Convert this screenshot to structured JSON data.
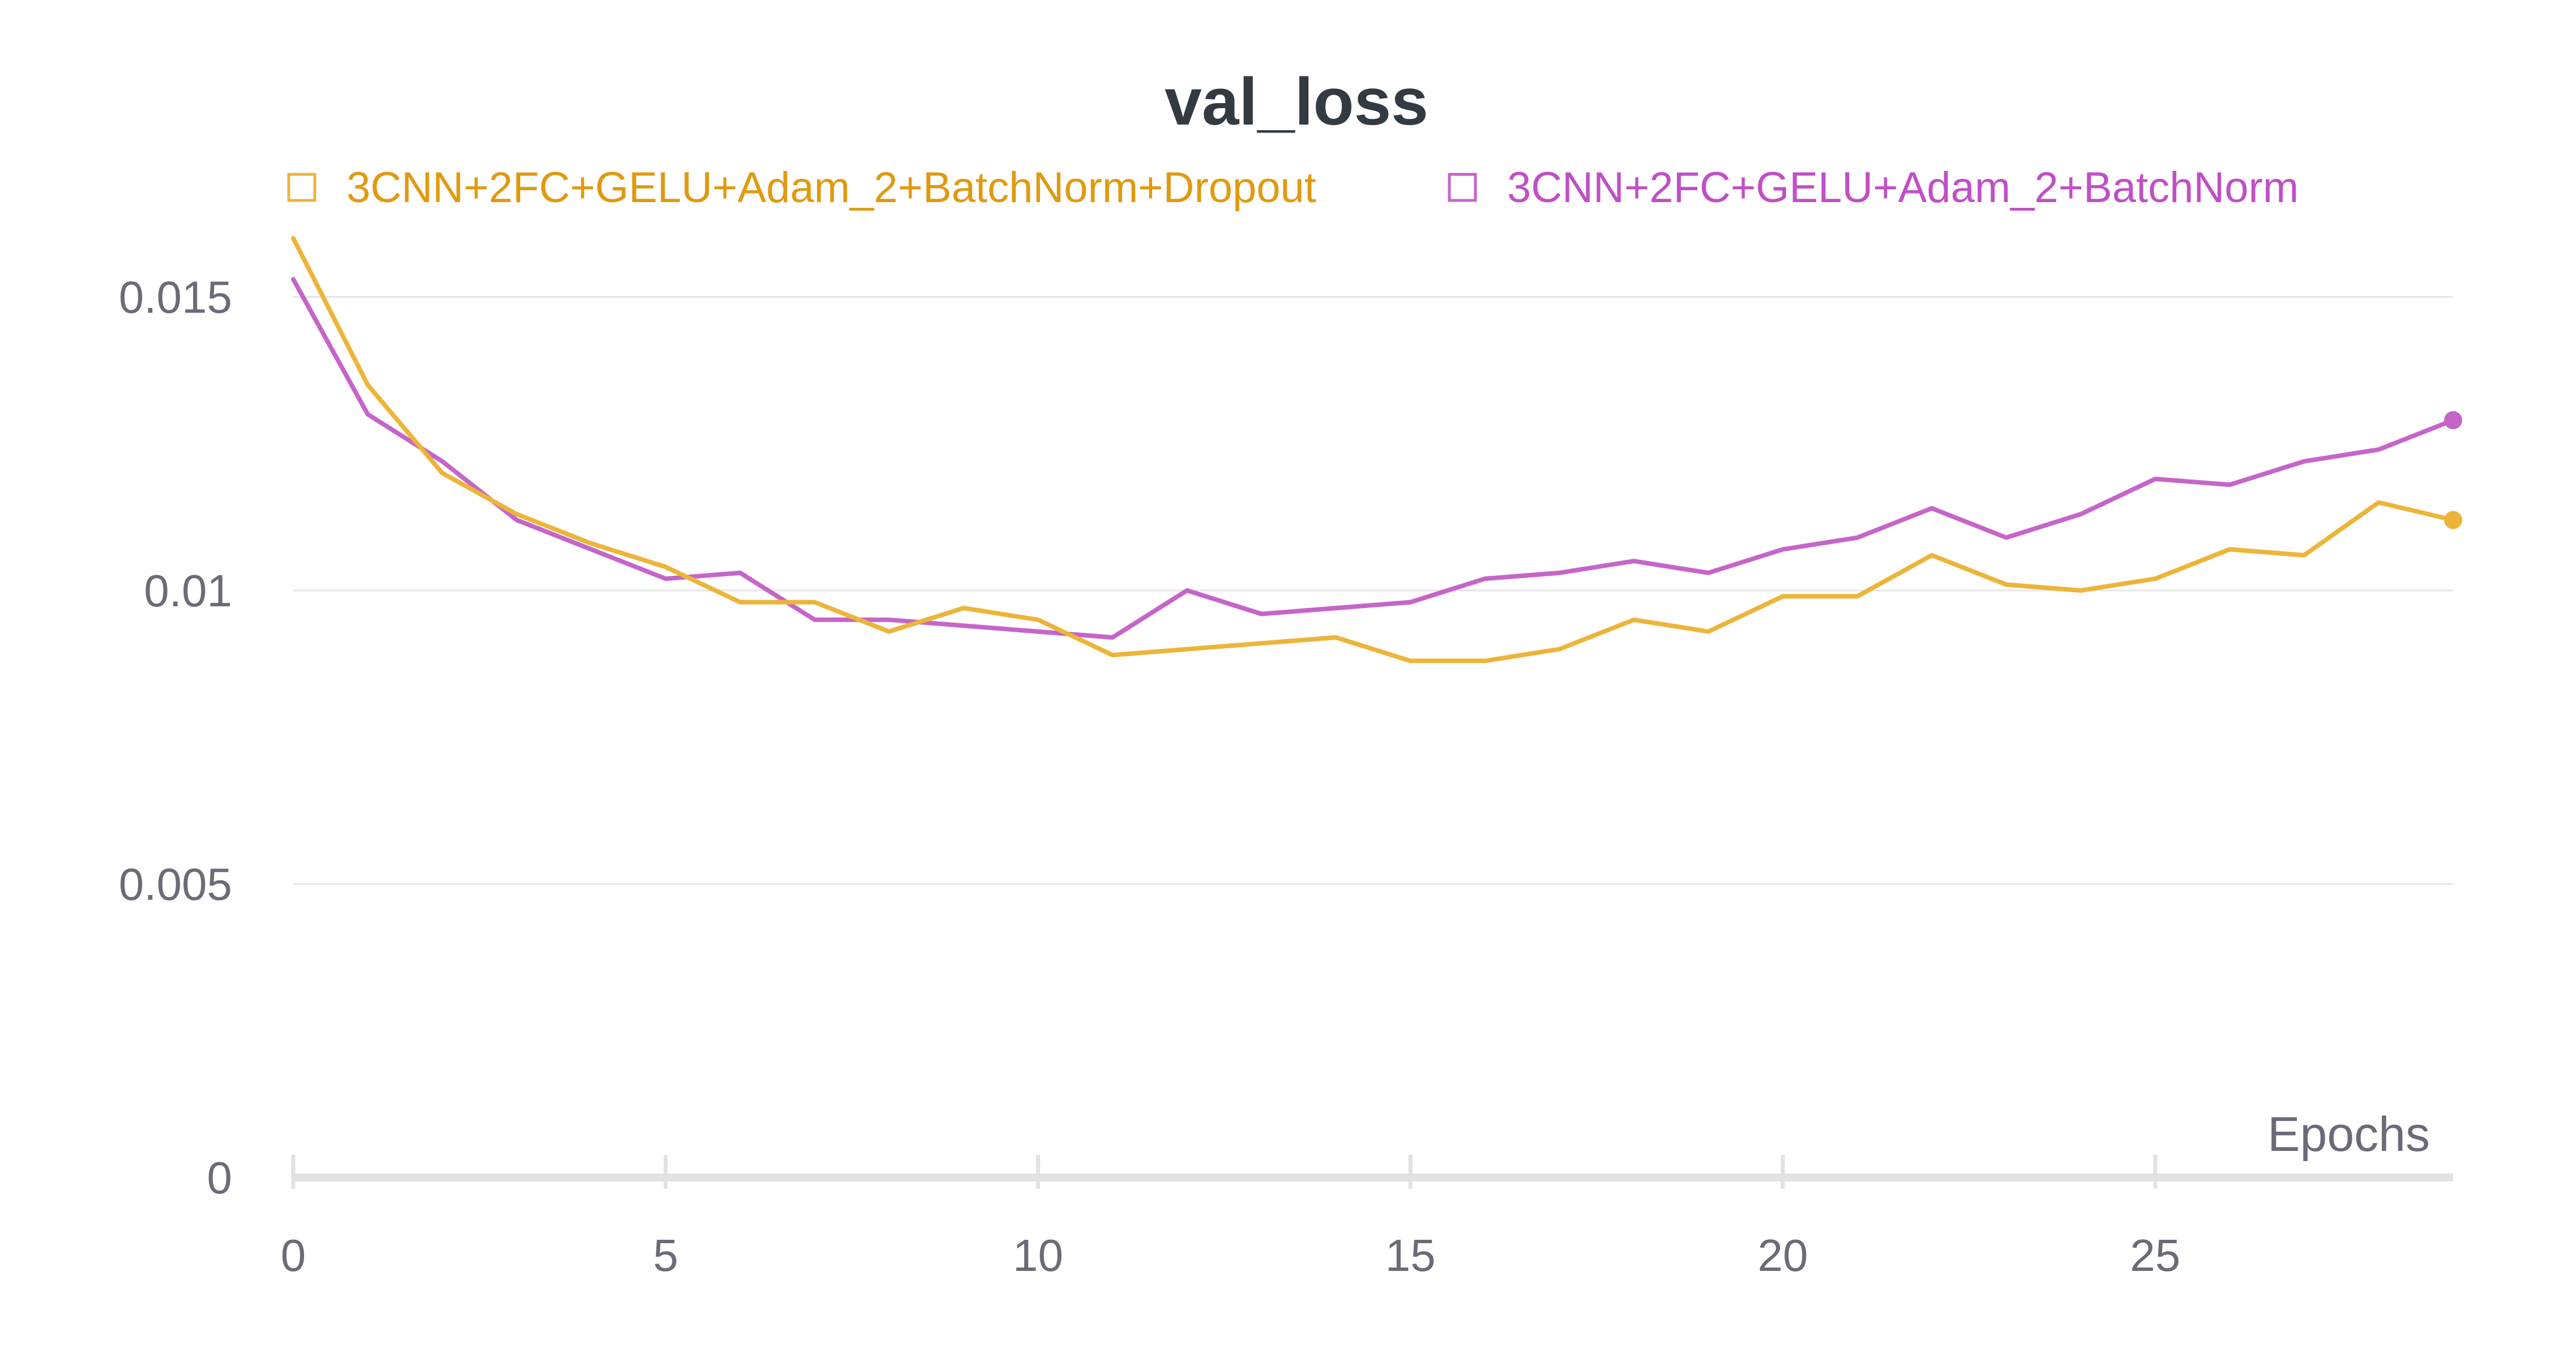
{
  "chart_data": {
    "type": "line",
    "title": "val_loss",
    "xlabel": "Epochs",
    "ylabel": "",
    "xlim": [
      0,
      29
    ],
    "ylim": [
      0,
      0.017
    ],
    "x_ticks": [
      0,
      5,
      10,
      15,
      20,
      25
    ],
    "y_ticks": [
      0,
      0.005,
      0.01,
      0.015
    ],
    "y_tick_labels": [
      "0",
      "0.005",
      "0.01",
      "0.015"
    ],
    "grid": true,
    "legend_position": "top",
    "x": [
      0,
      1,
      2,
      3,
      4,
      5,
      6,
      7,
      8,
      9,
      10,
      11,
      12,
      13,
      14,
      15,
      16,
      17,
      18,
      19,
      20,
      21,
      22,
      23,
      24,
      25,
      26,
      27,
      28,
      29
    ],
    "series": [
      {
        "name": "3CNN+2FC+GELU+Adam_2+BatchNorm+Dropout",
        "color": "#ecb53a",
        "legend_color": "#e09a10",
        "values": [
          0.016,
          0.0135,
          0.012,
          0.0113,
          0.0108,
          0.0104,
          0.0098,
          0.0098,
          0.0093,
          0.0097,
          0.0095,
          0.0089,
          0.009,
          0.0091,
          0.0092,
          0.0088,
          0.0088,
          0.009,
          0.0095,
          0.0093,
          0.0099,
          0.0099,
          0.0106,
          0.0101,
          0.01,
          0.0102,
          0.0107,
          0.0106,
          0.0115,
          0.0112
        ]
      },
      {
        "name": "3CNN+2FC+GELU+Adam_2+BatchNorm",
        "color": "#c565c9",
        "legend_color": "#c04fc6",
        "values": [
          0.0153,
          0.013,
          0.0122,
          0.0112,
          0.0107,
          0.0102,
          0.0103,
          0.0095,
          0.0095,
          0.0094,
          0.0093,
          0.0092,
          0.01,
          0.0096,
          0.0097,
          0.0098,
          0.0102,
          0.0103,
          0.0105,
          0.0103,
          0.0107,
          0.0109,
          0.0114,
          0.0109,
          0.0113,
          0.0119,
          0.0118,
          0.0122,
          0.0124,
          0.0129
        ]
      }
    ]
  }
}
